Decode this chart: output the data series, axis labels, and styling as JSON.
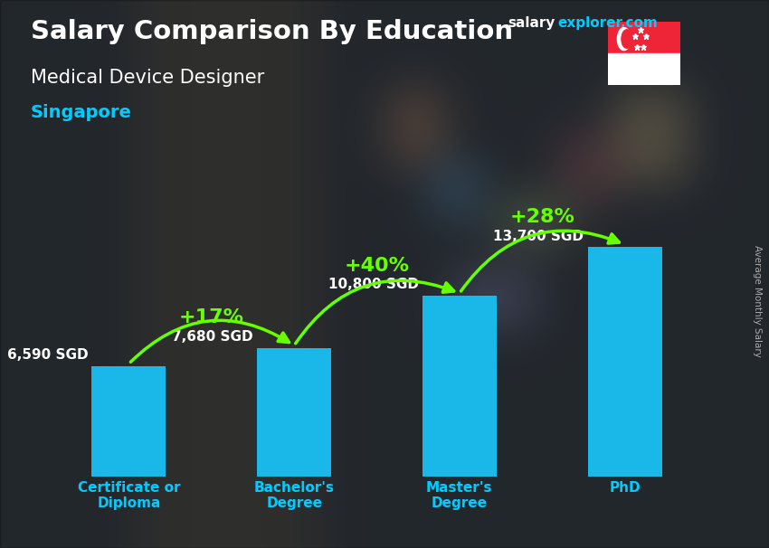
{
  "title_main": "Salary Comparison By Education",
  "subtitle1": "Medical Device Designer",
  "subtitle2": "Singapore",
  "categories": [
    "Certificate or\nDiploma",
    "Bachelor's\nDegree",
    "Master's\nDegree",
    "PhD"
  ],
  "values": [
    6590,
    7680,
    10800,
    13700
  ],
  "labels": [
    "6,590 SGD",
    "7,680 SGD",
    "10,800 SGD",
    "13,700 SGD"
  ],
  "pct_labels": [
    "+17%",
    "+40%",
    "+28%"
  ],
  "bar_color": "#1ab8e8",
  "bar_edge_light": "#6ee6ff",
  "background_color": "#3a3d4a",
  "title_color": "#ffffff",
  "subtitle1_color": "#ffffff",
  "subtitle2_color": "#00ccff",
  "label_color": "#ffffff",
  "pct_color": "#66ff00",
  "xticklabel_color": "#00ccff",
  "right_label": "Average Monthly Salary",
  "site_salary": "salary",
  "site_rest": "explorer.com",
  "site_color_salary": "#ffffff",
  "site_color_rest": "#00ccff",
  "ylim": [
    0,
    17000
  ],
  "bar_width": 0.45
}
